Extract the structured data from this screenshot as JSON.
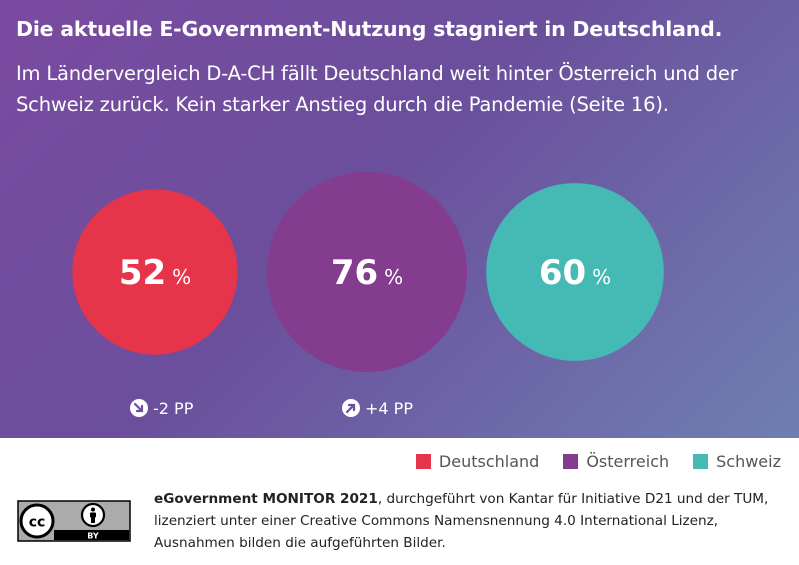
{
  "header": {
    "title": "Die aktuelle E-Government-Nutzung stagniert in Deutschland.",
    "subtitle": "Im Ländervergleich D-A-CH fällt Deutschland weit hinter Österreich und der Schweiz zurück. Kein starker Anstieg durch die Pandemie (Seite 16)."
  },
  "chart_data": {
    "type": "bubble",
    "unit": "%",
    "categories": [
      "Deutschland",
      "Österreich",
      "Schweiz"
    ],
    "values": [
      52,
      76,
      60
    ],
    "colors": [
      "#e6344a",
      "#843c8f",
      "#45b9b4"
    ],
    "changes": [
      "-2 PP",
      "+4 PP",
      null
    ],
    "change_direction": [
      "down",
      "up",
      null
    ],
    "legend": [
      {
        "label": "Deutschland",
        "color": "#e6344a"
      },
      {
        "label": "Österreich",
        "color": "#843c8f"
      },
      {
        "label": "Schweiz",
        "color": "#45b9b4"
      }
    ]
  },
  "footer": {
    "brand": "eGovernment MONITOR 2021",
    "text": ", durchgeführt von Kantar für Initiative D21 und der TUM, lizenziert unter einer Creative Commons Namensnennung 4.0 International Lizenz, Ausnahmen bilden die aufgeführten Bilder.",
    "license_badge": {
      "cc": "cc",
      "by": "BY"
    }
  }
}
